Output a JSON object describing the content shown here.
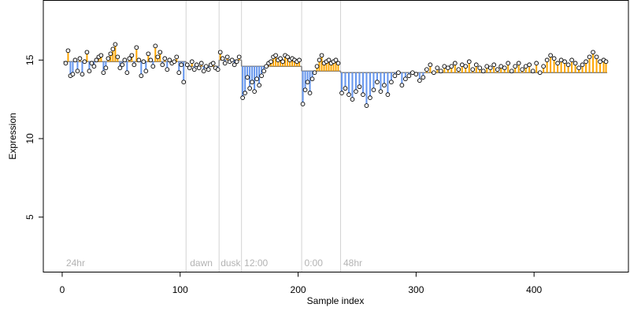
{
  "chart_data": {
    "type": "scatter",
    "title": "",
    "xlabel": "Sample index",
    "ylabel": "Expression",
    "xlim": [
      -16,
      480
    ],
    "ylim": [
      1.5,
      18.8
    ],
    "x_ticks": [
      0,
      100,
      200,
      300,
      400
    ],
    "y_ticks": [
      5,
      10,
      15
    ],
    "grid": false,
    "legend": "none",
    "colors": {
      "above_segment": "#ffa500",
      "below_segment": "#6495ed",
      "divider": "#d3d3d3",
      "fit_step": "#808080",
      "point_fill": "#ffffff",
      "point_edge": "#000000",
      "annotation": "#b3b3b3"
    },
    "annotations": [
      {
        "label": "24hr",
        "x": 2
      },
      {
        "label": "dawn",
        "x": 107
      },
      {
        "label": "dusk",
        "x": 133
      },
      {
        "label": "12:00",
        "x": 153
      },
      {
        "label": "0:00",
        "x": 204
      },
      {
        "label": "48hr",
        "x": 237
      }
    ],
    "dividers": [
      105,
      133,
      152,
      203,
      236
    ],
    "segments": [
      {
        "x0": 1,
        "x1": 105,
        "level": 14.9,
        "points": [
          [
            3,
            14.8
          ],
          [
            5,
            15.6
          ],
          [
            7,
            14.0
          ],
          [
            9,
            14.1
          ],
          [
            11,
            15.0
          ],
          [
            13,
            14.3
          ],
          [
            15,
            15.1
          ],
          [
            17,
            14.1
          ],
          [
            19,
            14.9
          ],
          [
            21,
            15.5
          ],
          [
            23,
            14.3
          ],
          [
            25,
            14.8
          ],
          [
            27,
            14.6
          ],
          [
            29,
            15.0
          ],
          [
            31,
            15.2
          ],
          [
            33,
            15.3
          ],
          [
            35,
            14.2
          ],
          [
            37,
            14.5
          ],
          [
            39,
            15.1
          ],
          [
            41,
            15.4
          ],
          [
            43,
            15.7
          ],
          [
            45,
            16.0
          ],
          [
            47,
            15.2
          ],
          [
            49,
            14.5
          ],
          [
            51,
            14.7
          ],
          [
            53,
            15.0
          ],
          [
            55,
            14.2
          ],
          [
            57,
            15.1
          ],
          [
            59,
            15.3
          ],
          [
            61,
            14.7
          ],
          [
            63,
            15.8
          ],
          [
            65,
            15.0
          ],
          [
            67,
            14.0
          ],
          [
            69,
            14.9
          ],
          [
            71,
            14.3
          ],
          [
            73,
            15.4
          ],
          [
            75,
            15.0
          ],
          [
            77,
            14.6
          ],
          [
            79,
            15.9
          ],
          [
            81,
            15.2
          ],
          [
            83,
            15.5
          ],
          [
            85,
            14.7
          ],
          [
            87,
            15.1
          ],
          [
            89,
            14.4
          ],
          [
            91,
            15.0
          ],
          [
            93,
            14.8
          ],
          [
            95,
            14.9
          ],
          [
            97,
            15.2
          ],
          [
            99,
            14.2
          ],
          [
            101,
            14.7
          ],
          [
            103,
            13.6
          ]
        ]
      },
      {
        "x0": 105,
        "x1": 133,
        "level": 14.6,
        "points": [
          [
            106,
            14.7
          ],
          [
            108,
            14.5
          ],
          [
            110,
            14.9
          ],
          [
            112,
            14.4
          ],
          [
            114,
            14.7
          ],
          [
            116,
            14.5
          ],
          [
            118,
            14.8
          ],
          [
            120,
            14.3
          ],
          [
            122,
            14.6
          ],
          [
            124,
            14.4
          ],
          [
            126,
            14.7
          ],
          [
            128,
            14.8
          ],
          [
            130,
            14.5
          ],
          [
            132,
            14.4
          ]
        ]
      },
      {
        "x0": 133,
        "x1": 152,
        "level": 15.0,
        "points": [
          [
            134,
            15.5
          ],
          [
            136,
            15.1
          ],
          [
            138,
            14.8
          ],
          [
            140,
            15.2
          ],
          [
            142,
            14.9
          ],
          [
            144,
            15.0
          ],
          [
            146,
            14.7
          ],
          [
            148,
            14.9
          ],
          [
            150,
            15.2
          ]
        ]
      },
      {
        "x0": 152,
        "x1": 203,
        "level": 14.6,
        "points": [
          [
            153,
            12.6
          ],
          [
            155,
            12.9
          ],
          [
            157,
            13.9
          ],
          [
            159,
            13.2
          ],
          [
            161,
            13.6
          ],
          [
            163,
            13.0
          ],
          [
            165,
            13.8
          ],
          [
            167,
            13.4
          ],
          [
            169,
            14.0
          ],
          [
            171,
            14.3
          ],
          [
            173,
            14.6
          ],
          [
            175,
            14.8
          ],
          [
            177,
            14.9
          ],
          [
            179,
            15.2
          ],
          [
            181,
            15.3
          ],
          [
            183,
            15.0
          ],
          [
            185,
            15.1
          ],
          [
            187,
            14.9
          ],
          [
            189,
            15.3
          ],
          [
            191,
            15.2
          ],
          [
            193,
            15.0
          ],
          [
            195,
            15.1
          ],
          [
            197,
            15.0
          ],
          [
            199,
            14.9
          ],
          [
            201,
            15.0
          ]
        ]
      },
      {
        "x0": 203,
        "x1": 236,
        "level": 14.3,
        "points": [
          [
            204,
            12.2
          ],
          [
            206,
            13.1
          ],
          [
            208,
            13.6
          ],
          [
            210,
            12.9
          ],
          [
            212,
            13.8
          ],
          [
            214,
            14.2
          ],
          [
            216,
            14.6
          ],
          [
            218,
            15.0
          ],
          [
            220,
            15.3
          ],
          [
            222,
            14.8
          ],
          [
            224,
            14.9
          ],
          [
            226,
            15.0
          ],
          [
            228,
            14.8
          ],
          [
            230,
            14.9
          ],
          [
            232,
            15.0
          ],
          [
            234,
            14.8
          ]
        ]
      },
      {
        "x0": 236,
        "x1": 462,
        "level": 14.2,
        "points": [
          [
            237,
            12.9
          ],
          [
            240,
            13.2
          ],
          [
            243,
            12.8
          ],
          [
            246,
            12.5
          ],
          [
            249,
            13.0
          ],
          [
            252,
            13.3
          ],
          [
            255,
            12.8
          ],
          [
            258,
            12.1
          ],
          [
            261,
            12.6
          ],
          [
            264,
            13.1
          ],
          [
            267,
            13.6
          ],
          [
            270,
            13.0
          ],
          [
            273,
            13.4
          ],
          [
            276,
            12.8
          ],
          [
            279,
            13.6
          ],
          [
            282,
            14.0
          ],
          [
            285,
            14.2
          ],
          [
            288,
            13.4
          ],
          [
            291,
            13.8
          ],
          [
            294,
            14.0
          ],
          [
            297,
            14.2
          ],
          [
            300,
            14.1
          ],
          [
            303,
            13.7
          ],
          [
            306,
            13.9
          ],
          [
            309,
            14.4
          ],
          [
            312,
            14.7
          ],
          [
            315,
            14.2
          ],
          [
            318,
            14.5
          ],
          [
            321,
            14.3
          ],
          [
            324,
            14.6
          ],
          [
            327,
            14.5
          ],
          [
            330,
            14.6
          ],
          [
            333,
            14.8
          ],
          [
            336,
            14.4
          ],
          [
            339,
            14.7
          ],
          [
            342,
            14.6
          ],
          [
            345,
            14.9
          ],
          [
            348,
            14.4
          ],
          [
            351,
            14.7
          ],
          [
            354,
            14.5
          ],
          [
            357,
            14.3
          ],
          [
            360,
            14.6
          ],
          [
            363,
            14.5
          ],
          [
            366,
            14.7
          ],
          [
            369,
            14.4
          ],
          [
            372,
            14.6
          ],
          [
            375,
            14.5
          ],
          [
            378,
            14.8
          ],
          [
            381,
            14.3
          ],
          [
            384,
            14.6
          ],
          [
            387,
            14.8
          ],
          [
            390,
            14.4
          ],
          [
            393,
            14.6
          ],
          [
            396,
            14.7
          ],
          [
            399,
            14.3
          ],
          [
            402,
            14.8
          ],
          [
            405,
            14.2
          ],
          [
            408,
            14.6
          ],
          [
            411,
            15.0
          ],
          [
            414,
            15.3
          ],
          [
            417,
            15.1
          ],
          [
            420,
            14.8
          ],
          [
            423,
            15.0
          ],
          [
            426,
            14.9
          ],
          [
            429,
            14.7
          ],
          [
            432,
            15.0
          ],
          [
            435,
            14.8
          ],
          [
            438,
            14.5
          ],
          [
            441,
            14.7
          ],
          [
            444,
            14.9
          ],
          [
            447,
            15.2
          ],
          [
            450,
            15.5
          ],
          [
            453,
            15.2
          ],
          [
            456,
            14.9
          ],
          [
            459,
            15.0
          ],
          [
            461,
            14.9
          ]
        ]
      }
    ]
  }
}
